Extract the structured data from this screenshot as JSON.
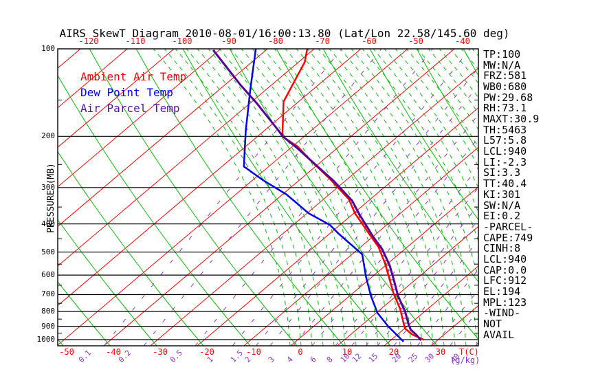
{
  "title": "AIRS SkewT Diagram 2010-08-01/16:00:13.80 (Lat/Lon 22.58/145.60 deg)",
  "legend": [
    {
      "label": "Ambient Air Temp",
      "color": "#ff0000"
    },
    {
      "label": "Dew Point Temp",
      "color": "#0000ee"
    },
    {
      "label": "Air Parcel Temp",
      "color": "#5a0fa8"
    }
  ],
  "axes": {
    "top_ticks": [
      -120,
      -110,
      -100,
      -90,
      -80,
      -70,
      -60,
      -50,
      -40
    ],
    "bottom_ticks": [
      -50,
      -40,
      -30,
      -20,
      -10,
      0,
      10,
      20,
      30
    ],
    "bottom_axis_label": "T(C)",
    "pressure_ticks": [
      100,
      200,
      300,
      400,
      500,
      600,
      700,
      800,
      900,
      1000
    ],
    "pressure_axis_label": "PRESSURE (MB)",
    "mixing_ratio_ticks": [
      "0.1",
      "0.2",
      "0.5",
      "1",
      "1.5",
      "2",
      "3",
      "4",
      "6",
      "8",
      "10",
      "12",
      "15",
      "20",
      "25",
      "30",
      "40"
    ],
    "mixing_ratio_unit": "(g/kg)"
  },
  "stats": [
    "TP:100",
    "MW:N/A",
    "FRZ:581",
    "WB0:680",
    "PW:29.68",
    "RH:73.1",
    "MAXT:30.9",
    "TH:5463",
    "L57:5.8",
    "LCL:940",
    "LI:-2.3",
    "SI:3.3",
    "TT:40.4",
    "KI:301",
    "SW:N/A",
    "EI:0.2",
    "-PARCEL-",
    "CAPE:749",
    "CINH:8",
    "LCL:940",
    "CAP:0.0",
    "LFC:912",
    "EL:194",
    "MPL:123",
    "-WIND-",
    "NOT",
    "AVAIL"
  ],
  "colors": {
    "isotherm": "#ff0000",
    "dry_adiabat": "#00bf00",
    "moist_adiabat": "#00bf00",
    "mixing_ratio": "#8833cc",
    "isobar": "#000000",
    "ambient": "#ff0000",
    "dewpoint": "#0000ee",
    "parcel": "#550099",
    "hatch": "#660099"
  },
  "chart_data": {
    "type": "line",
    "diagram": "skew-t-log-p",
    "title": "AIRS SkewT Diagram 2010-08-01/16:00:13.80 (Lat/Lon 22.58/145.60 deg)",
    "xlabel": "T(C)",
    "ylabel": "PRESSURE (MB)",
    "x_range_c": [
      -50,
      40
    ],
    "pressure_range_mb": [
      100,
      1050
    ],
    "pressure_scale": "log",
    "isotherm_step_c": 10,
    "grid": true,
    "legend_position": "top-left-inside",
    "series": [
      {
        "name": "Ambient Air Temp",
        "units": "mb,C",
        "points": [
          [
            100,
            -71.5
          ],
          [
            111,
            -68.7
          ],
          [
            152,
            -63.2
          ],
          [
            200,
            -54.7
          ],
          [
            217,
            -48.8
          ],
          [
            244,
            -42.1
          ],
          [
            280,
            -33.8
          ],
          [
            329,
            -24.6
          ],
          [
            368,
            -19.7
          ],
          [
            437,
            -11.0
          ],
          [
            480,
            -6.2
          ],
          [
            546,
            -0.7
          ],
          [
            624,
            4.6
          ],
          [
            694,
            8.8
          ],
          [
            786,
            14.2
          ],
          [
            877,
            18.4
          ],
          [
            916,
            20.1
          ],
          [
            962,
            23.3
          ],
          [
            1002,
            27.1
          ]
        ]
      },
      {
        "name": "Dew Point Temp",
        "units": "mb,C",
        "points": [
          [
            100,
            -82.5
          ],
          [
            138,
            -73.4
          ],
          [
            191,
            -64.0
          ],
          [
            254,
            -55.3
          ],
          [
            284,
            -47.5
          ],
          [
            317,
            -39.1
          ],
          [
            368,
            -29.6
          ],
          [
            403,
            -22.2
          ],
          [
            432,
            -18.1
          ],
          [
            509,
            -7.8
          ],
          [
            610,
            -1.2
          ],
          [
            708,
            4.6
          ],
          [
            810,
            10.3
          ],
          [
            901,
            16.0
          ],
          [
            1016,
            23.1
          ]
        ]
      },
      {
        "name": "Air Parcel Temp",
        "units": "mb,C",
        "points": [
          [
            101,
            -91.3
          ],
          [
            133,
            -76.7
          ],
          [
            154,
            -68.5
          ],
          [
            191,
            -57.0
          ],
          [
            201,
            -54.3
          ],
          [
            220,
            -48.4
          ],
          [
            248,
            -41.0
          ],
          [
            284,
            -32.6
          ],
          [
            333,
            -23.5
          ],
          [
            371,
            -18.5
          ],
          [
            442,
            -10.0
          ],
          [
            490,
            -4.7
          ],
          [
            556,
            0.9
          ],
          [
            634,
            6.1
          ],
          [
            708,
            10.4
          ],
          [
            800,
            15.8
          ],
          [
            890,
            20.0
          ],
          [
            924,
            21.6
          ],
          [
            964,
            24.2
          ],
          [
            1006,
            26.5
          ]
        ]
      }
    ],
    "hatched_region": {
      "between": [
        "Ambient Air Temp",
        "Air Parcel Temp"
      ],
      "p_top_mb": 201,
      "p_bottom_mb": 912
    }
  }
}
